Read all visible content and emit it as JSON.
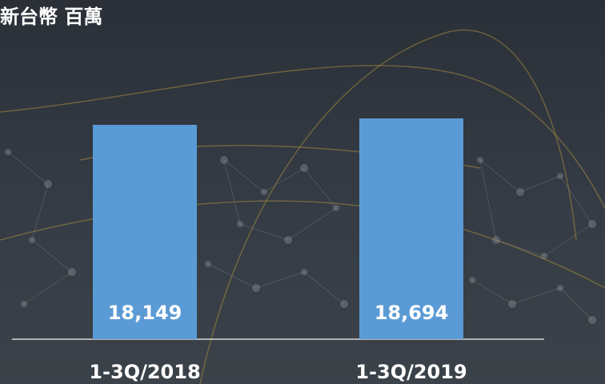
{
  "chart_data": {
    "type": "bar",
    "title": "新台幣 百萬",
    "categories": [
      "1-3Q/2018",
      "1-3Q/2019"
    ],
    "values": [
      18149,
      18694
    ],
    "value_labels": [
      "18,149",
      "18,694"
    ],
    "color": "#5b9bd5"
  }
}
